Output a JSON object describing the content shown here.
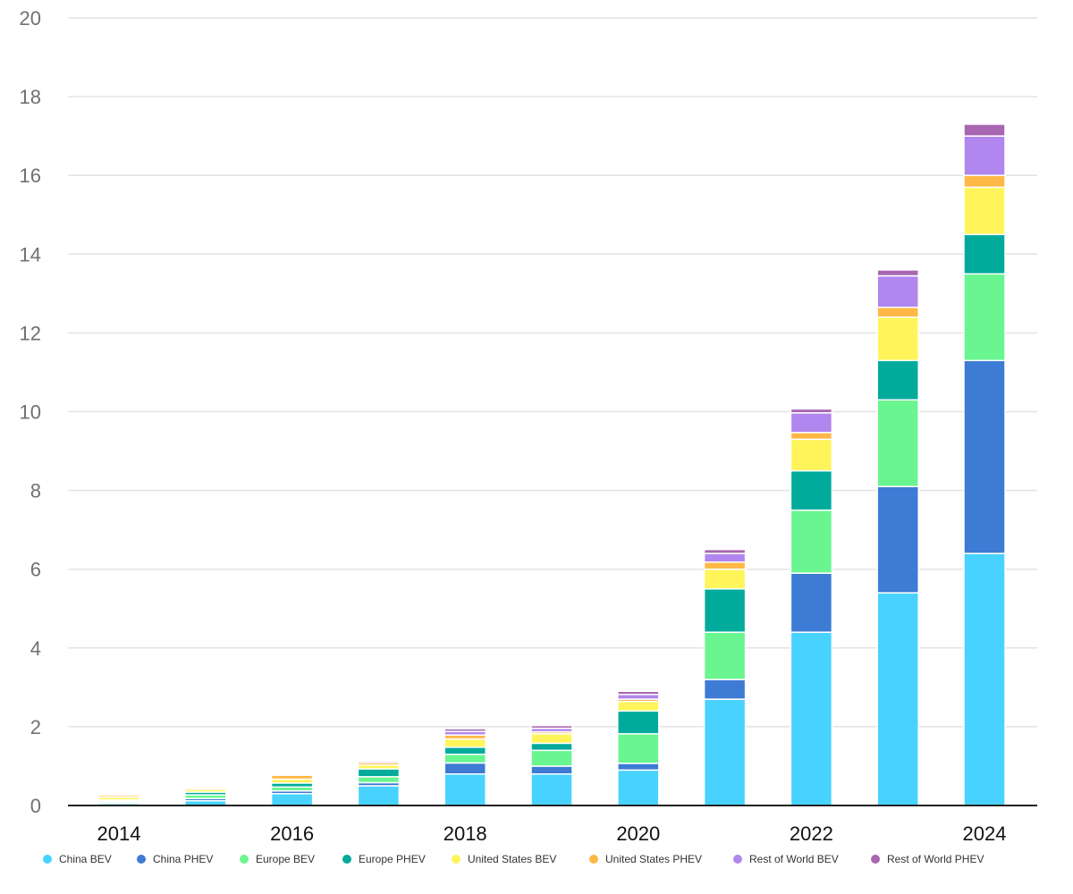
{
  "chart_data": {
    "type": "bar",
    "stacked": true,
    "title": "",
    "xlabel": "",
    "ylabel": "",
    "ylim": [
      0,
      20
    ],
    "yticks": [
      0,
      2,
      4,
      6,
      8,
      10,
      12,
      14,
      16,
      18,
      20
    ],
    "grid": true,
    "legend_position": "bottom",
    "categories": [
      "2014",
      "2015",
      "2016",
      "2017",
      "2018",
      "2019",
      "2020",
      "2021",
      "2022",
      "2023",
      "2024"
    ],
    "xtick_labels": [
      "2014",
      "",
      "2016",
      "",
      "2018",
      "",
      "2020",
      "",
      "2022",
      "",
      "2024"
    ],
    "series": [
      {
        "name": "China BEV",
        "color": "#48D2FF",
        "values": [
          0.05,
          0.12,
          0.3,
          0.5,
          0.8,
          0.8,
          0.9,
          2.7,
          4.4,
          5.4,
          6.4
        ]
      },
      {
        "name": "China PHEV",
        "color": "#3D7BD4",
        "values": [
          0.02,
          0.06,
          0.07,
          0.08,
          0.28,
          0.2,
          0.17,
          0.5,
          1.5,
          2.7,
          4.9
        ]
      },
      {
        "name": "Europe BEV",
        "color": "#69F590",
        "values": [
          0.04,
          0.09,
          0.1,
          0.15,
          0.22,
          0.4,
          0.75,
          1.2,
          1.6,
          2.2,
          2.2
        ]
      },
      {
        "name": "Europe PHEV",
        "color": "#00AB9C",
        "values": [
          0.03,
          0.07,
          0.1,
          0.2,
          0.18,
          0.18,
          0.58,
          1.1,
          1.0,
          1.0,
          1.0
        ]
      },
      {
        "name": "United States BEV",
        "color": "#FFF55A",
        "values": [
          0.07,
          0.07,
          0.1,
          0.1,
          0.21,
          0.24,
          0.24,
          0.5,
          0.8,
          1.1,
          1.2
        ]
      },
      {
        "name": "United States PHEV",
        "color": "#FFB845",
        "values": [
          0.05,
          0.04,
          0.1,
          0.06,
          0.1,
          0.05,
          0.06,
          0.18,
          0.17,
          0.25,
          0.3
        ]
      },
      {
        "name": "Rest of World BEV",
        "color": "#B186EE",
        "values": [
          0.02,
          0.03,
          0.03,
          0.04,
          0.09,
          0.09,
          0.12,
          0.22,
          0.5,
          0.8,
          1.0
        ]
      },
      {
        "name": "Rest of World PHEV",
        "color": "#A866B0",
        "values": [
          0.02,
          0.02,
          0.03,
          0.03,
          0.07,
          0.07,
          0.08,
          0.1,
          0.1,
          0.15,
          0.3
        ]
      }
    ]
  }
}
